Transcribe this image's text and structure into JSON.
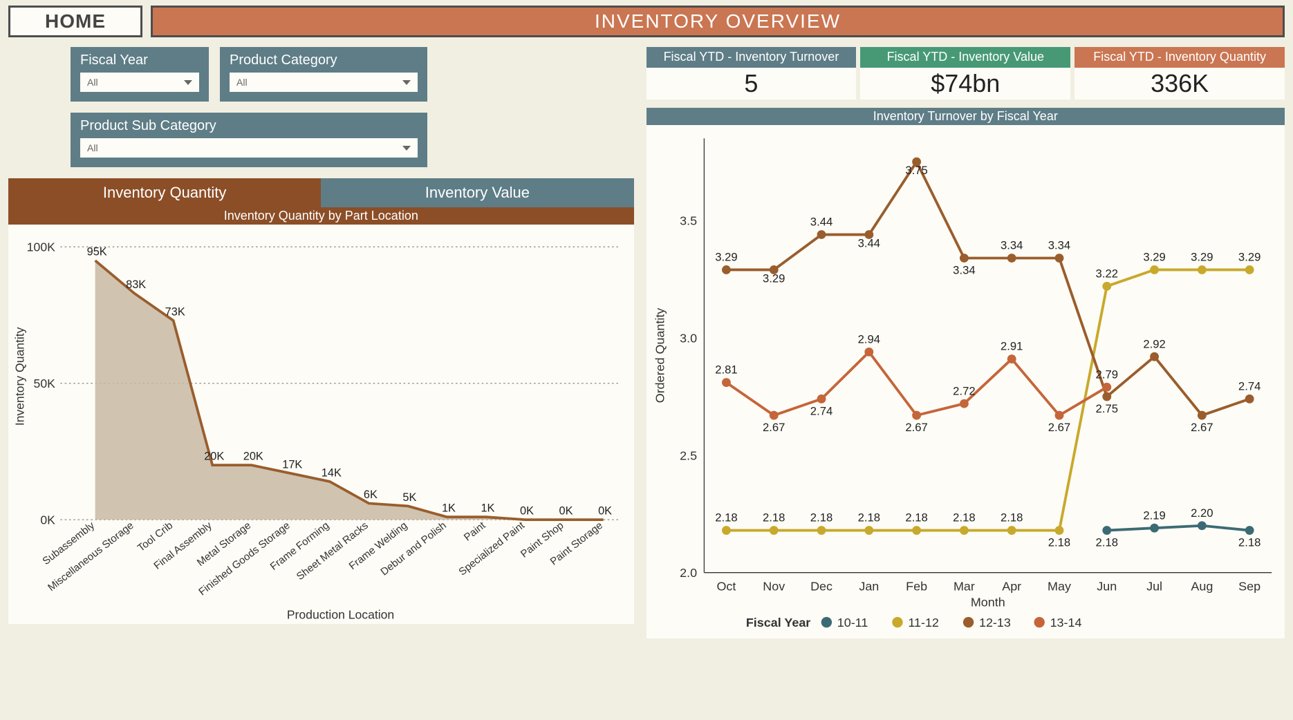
{
  "header": {
    "home_label": "HOME",
    "title": "INVENTORY OVERVIEW"
  },
  "filters": {
    "fiscal_year": {
      "label": "Fiscal Year",
      "value": "All"
    },
    "product_category": {
      "label": "Product Category",
      "value": "All"
    },
    "product_sub_category": {
      "label": "Product Sub Category",
      "value": "All"
    }
  },
  "tabs": {
    "qty": "Inventory Quantity",
    "val": "Inventory Value",
    "active": "qty"
  },
  "colors": {
    "teal": "#5e7d87",
    "brown_dark": "#8c4e27",
    "brown_line": "#9a5d2d",
    "area_fill": "#c8b8a3",
    "orange": "#ca7652",
    "green": "#479976",
    "yellow": "#c8a92c",
    "red_orange": "#c5653a",
    "teal_line": "#3c6a74",
    "bg": "#fdfcf6",
    "grid": "#888888"
  },
  "area_chart": {
    "title": "Inventory Quantity by Part Location",
    "y_label": "Inventory Quantity",
    "x_label": "Production Location",
    "y_ticks": [
      0,
      50,
      100
    ],
    "y_tick_labels": [
      "0K",
      "50K",
      "100K"
    ],
    "ylim": [
      0,
      105
    ],
    "categories": [
      "Subassembly",
      "Miscellaneous Storage",
      "Tool Crib",
      "Final Assembly",
      "Metal Storage",
      "Finished Goods Storage",
      "Frame Forming",
      "Sheet Metal Racks",
      "Frame Welding",
      "Debur and Polish",
      "Paint",
      "Specialized Paint",
      "Paint Shop",
      "Paint Storage"
    ],
    "values": [
      95,
      83,
      73,
      20,
      20,
      17,
      14,
      6,
      5,
      1,
      1,
      0,
      0,
      0
    ],
    "value_labels": [
      "95K",
      "83K",
      "73K",
      "20K",
      "20K",
      "17K",
      "14K",
      "6K",
      "5K",
      "1K",
      "1K",
      "0K",
      "0K",
      "0K"
    ],
    "fill_color": "#c8b8a3",
    "line_color": "#9a5d2d",
    "line_width": 3,
    "grid_dash": "2,3"
  },
  "kpis": [
    {
      "head_class": "teal",
      "title": "Fiscal YTD - Inventory Turnover",
      "value": "5"
    },
    {
      "head_class": "green",
      "title": "Fiscal YTD - Inventory Value",
      "value": "$74bn"
    },
    {
      "head_class": "orange",
      "title": "Fiscal YTD - Inventory Quantity",
      "value": "336K"
    }
  ],
  "line_chart": {
    "title": "Inventory Turnover by Fiscal Year",
    "y_label": "Ordered Quantity",
    "x_label": "Month",
    "y_ticks": [
      2.0,
      2.5,
      3.0,
      3.5
    ],
    "ylim": [
      2.0,
      3.85
    ],
    "months": [
      "Oct",
      "Nov",
      "Dec",
      "Jan",
      "Feb",
      "Mar",
      "Apr",
      "May",
      "Jun",
      "Jul",
      "Aug",
      "Sep"
    ],
    "legend_title": "Fiscal Year",
    "series": [
      {
        "name": "10-11",
        "color": "#3c6a74",
        "values": [
          null,
          null,
          null,
          null,
          null,
          null,
          null,
          null,
          2.18,
          2.19,
          2.2,
          2.18
        ]
      },
      {
        "name": "11-12",
        "color": "#c8a92c",
        "values": [
          2.18,
          2.18,
          2.18,
          2.18,
          2.18,
          2.18,
          2.18,
          2.18,
          3.22,
          3.29,
          3.29,
          3.29
        ]
      },
      {
        "name": "12-13",
        "color": "#9a5d2d",
        "values": [
          3.29,
          3.29,
          3.44,
          3.44,
          3.75,
          3.34,
          3.34,
          3.34,
          2.75,
          2.92,
          2.67,
          2.74
        ]
      },
      {
        "name": "13-14",
        "color": "#c5653a",
        "values": [
          2.81,
          2.67,
          2.74,
          2.94,
          2.67,
          2.72,
          2.91,
          2.67,
          2.79,
          null,
          null,
          null
        ]
      }
    ],
    "labels_placed": [
      {
        "t": "3.29",
        "x": 0,
        "y": 3.29,
        "dy": -10,
        "s": 2
      },
      {
        "t": "3.29",
        "x": 1,
        "y": 3.29,
        "dy": 14,
        "s": 2
      },
      {
        "t": "3.44",
        "x": 2,
        "y": 3.44,
        "dy": -10,
        "s": 2
      },
      {
        "t": "3.44",
        "x": 3,
        "y": 3.44,
        "dy": 14,
        "s": 2
      },
      {
        "t": "3.75",
        "x": 4,
        "y": 3.75,
        "dy": 14,
        "s": 2
      },
      {
        "t": "3.34",
        "x": 5,
        "y": 3.34,
        "dy": 18,
        "s": 2
      },
      {
        "t": "3.34",
        "x": 6,
        "y": 3.34,
        "dy": -10,
        "s": 2
      },
      {
        "t": "3.34",
        "x": 7,
        "y": 3.34,
        "dy": -10,
        "s": 2
      },
      {
        "t": "2.75",
        "x": 8,
        "y": 2.75,
        "dy": 18,
        "s": 2
      },
      {
        "t": "2.92",
        "x": 9,
        "y": 2.92,
        "dy": -10,
        "s": 2
      },
      {
        "t": "2.67",
        "x": 10,
        "y": 2.67,
        "dy": 18,
        "s": 2
      },
      {
        "t": "2.74",
        "x": 11,
        "y": 2.74,
        "dy": -10,
        "s": 2
      },
      {
        "t": "2.81",
        "x": 0,
        "y": 2.81,
        "dy": -10,
        "s": 3
      },
      {
        "t": "2.67",
        "x": 1,
        "y": 2.67,
        "dy": 18,
        "s": 3
      },
      {
        "t": "2.74",
        "x": 2,
        "y": 2.74,
        "dy": 18,
        "s": 3
      },
      {
        "t": "2.94",
        "x": 3,
        "y": 2.94,
        "dy": -10,
        "s": 3
      },
      {
        "t": "2.67",
        "x": 4,
        "y": 2.67,
        "dy": 18,
        "s": 3
      },
      {
        "t": "2.72",
        "x": 5,
        "y": 2.72,
        "dy": -10,
        "s": 3
      },
      {
        "t": "2.91",
        "x": 6,
        "y": 2.91,
        "dy": -10,
        "s": 3
      },
      {
        "t": "2.67",
        "x": 7,
        "y": 2.67,
        "dy": 18,
        "s": 3
      },
      {
        "t": "2.79",
        "x": 8,
        "y": 2.79,
        "dy": -10,
        "s": 3
      },
      {
        "t": "2.18",
        "x": 0,
        "y": 2.18,
        "dy": -10,
        "s": 1
      },
      {
        "t": "2.18",
        "x": 1,
        "y": 2.18,
        "dy": -10,
        "s": 1
      },
      {
        "t": "2.18",
        "x": 2,
        "y": 2.18,
        "dy": -10,
        "s": 1
      },
      {
        "t": "2.18",
        "x": 3,
        "y": 2.18,
        "dy": -10,
        "s": 1
      },
      {
        "t": "2.18",
        "x": 4,
        "y": 2.18,
        "dy": -10,
        "s": 1
      },
      {
        "t": "2.18",
        "x": 5,
        "y": 2.18,
        "dy": -10,
        "s": 1
      },
      {
        "t": "2.18",
        "x": 6,
        "y": 2.18,
        "dy": -10,
        "s": 1
      },
      {
        "t": "2.18",
        "x": 7,
        "y": 2.18,
        "dy": 18,
        "s": 1
      },
      {
        "t": "3.22",
        "x": 8,
        "y": 3.22,
        "dy": -10,
        "s": 1
      },
      {
        "t": "3.29",
        "x": 9,
        "y": 3.29,
        "dy": -10,
        "s": 1
      },
      {
        "t": "3.29",
        "x": 10,
        "y": 3.29,
        "dy": -10,
        "s": 1
      },
      {
        "t": "3.29",
        "x": 11,
        "y": 3.29,
        "dy": -10,
        "s": 1
      },
      {
        "t": "2.18",
        "x": 8,
        "y": 2.18,
        "dy": 18,
        "s": 0
      },
      {
        "t": "2.19",
        "x": 9,
        "y": 2.19,
        "dy": -10,
        "s": 0
      },
      {
        "t": "2.20",
        "x": 10,
        "y": 2.2,
        "dy": -10,
        "s": 0
      },
      {
        "t": "2.18",
        "x": 11,
        "y": 2.18,
        "dy": 18,
        "s": 0
      }
    ],
    "line_width": 3,
    "marker_radius": 5
  }
}
